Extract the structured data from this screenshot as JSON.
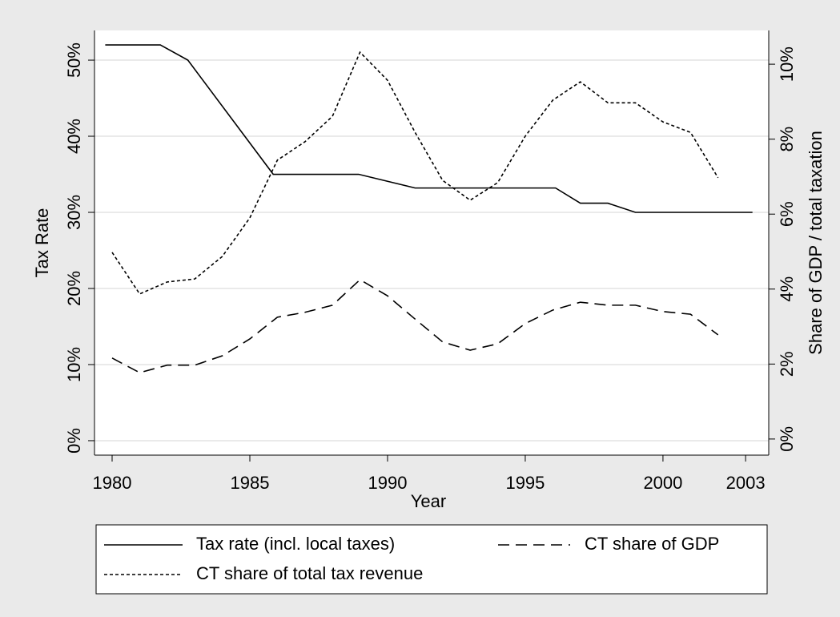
{
  "chart_data": {
    "type": "line",
    "x_label": "Year",
    "y_label": "Tax Rate",
    "y2_label": "Share of GDP / total taxation",
    "xlim": [
      1979.36,
      2003.84
    ],
    "xticks": [
      1980,
      1985,
      1990,
      1995,
      2000,
      2003
    ],
    "ylim": [
      -1.9,
      53.9
    ],
    "yticks": [
      {
        "value": 0,
        "label": "0%"
      },
      {
        "value": 10,
        "label": "10%"
      },
      {
        "value": 20,
        "label": "20%"
      },
      {
        "value": 30,
        "label": "30%"
      },
      {
        "value": 40,
        "label": "40%"
      },
      {
        "value": 50,
        "label": "50%"
      }
    ],
    "y2lim": [
      -0.43,
      10.9
    ],
    "y2ticks": [
      {
        "value": 0,
        "label": "0%"
      },
      {
        "value": 2,
        "label": "2%"
      },
      {
        "value": 4,
        "label": "4%"
      },
      {
        "value": 6,
        "label": "6%"
      },
      {
        "value": 8,
        "label": "8%"
      },
      {
        "value": 10,
        "label": "10%"
      }
    ],
    "grid": true,
    "legend": "bottom",
    "series": [
      {
        "name": "Tax rate (incl. local taxes)",
        "color": "#000000",
        "line_style": "solid",
        "x": [
          1979.75,
          1981.75,
          1982.75,
          1985.85,
          1988.95,
          1991,
          1996.1,
          1997,
          1998,
          1999,
          2003.25
        ],
        "values": [
          52,
          52,
          50,
          35,
          35,
          33.2,
          33.2,
          31.2,
          31.2,
          30,
          30
        ]
      },
      {
        "name": "CT share of GDP",
        "color": "#000000",
        "line_style": "dashed",
        "axis": "y2",
        "x": [
          1980,
          1981,
          1982,
          1983,
          1984,
          1985,
          1986,
          1987,
          1988,
          1989,
          1990,
          1991,
          1992,
          1993,
          1994,
          1995,
          1996,
          1997,
          1998,
          1999,
          2000,
          2001,
          2002
        ],
        "values": [
          2.16,
          1.77,
          1.97,
          1.97,
          2.22,
          2.67,
          3.25,
          3.38,
          3.57,
          4.25,
          3.82,
          3.2,
          2.59,
          2.37,
          2.54,
          3.08,
          3.44,
          3.65,
          3.57,
          3.57,
          3.4,
          3.33,
          2.78
        ]
      },
      {
        "name": "CT share of total tax revenue",
        "color": "#000000",
        "line_style": "dotted",
        "axis": "y2",
        "x": [
          1980,
          1981,
          1982,
          1983,
          1984,
          1985,
          1986,
          1987,
          1988,
          1989,
          1990,
          1991,
          1992,
          1993,
          1994,
          1995,
          1996,
          1997,
          1998,
          1999,
          2000,
          2001,
          2002
        ],
        "values": [
          4.98,
          3.87,
          4.19,
          4.27,
          4.87,
          5.9,
          7.44,
          7.93,
          8.61,
          10.32,
          9.57,
          8.18,
          6.9,
          6.37,
          6.84,
          8.08,
          9.04,
          9.53,
          8.97,
          8.97,
          8.46,
          8.18,
          6.97
        ]
      }
    ]
  }
}
